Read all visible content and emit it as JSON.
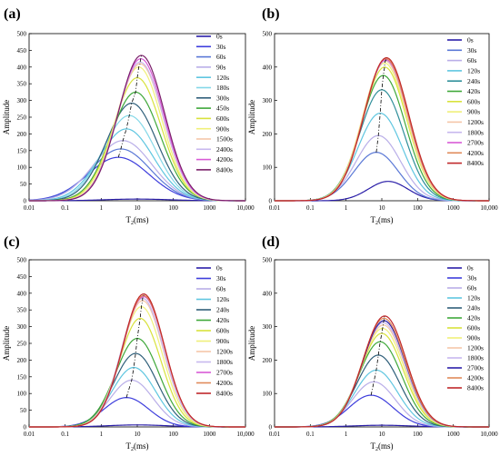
{
  "chart_data": [
    {
      "panel_label": "(a)",
      "type": "line",
      "xlabel": "T2(ms)",
      "ylabel": "Amplitude",
      "xscale": "log",
      "xlim": [
        0.01,
        10000
      ],
      "ylim": [
        0,
        500
      ],
      "x_ticks": [
        "0.01",
        "0.1",
        "1",
        "10",
        "100",
        "1000",
        "10,000"
      ],
      "y_ticks": [
        "0",
        "50",
        "100",
        "150",
        "200",
        "250",
        "300",
        "350",
        "400",
        "450",
        "500"
      ],
      "legend_position": "right",
      "series": [
        {
          "name": "0s",
          "color": "#2a1ea8",
          "peak_x": 10,
          "peak_y": 5,
          "width": 0.9
        },
        {
          "name": "30s",
          "color": "#3d3ddc",
          "peak_x": 3,
          "peak_y": 130,
          "width": 0.85
        },
        {
          "name": "60s",
          "color": "#5a78d6",
          "peak_x": 3.5,
          "peak_y": 155,
          "width": 0.82
        },
        {
          "name": "90s",
          "color": "#b9aee8",
          "peak_x": 4,
          "peak_y": 180,
          "width": 0.8
        },
        {
          "name": "120s",
          "color": "#5fc6e0",
          "peak_x": 5,
          "peak_y": 215,
          "width": 0.75
        },
        {
          "name": "180s",
          "color": "#84d8e8",
          "peak_x": 6,
          "peak_y": 255,
          "width": 0.72
        },
        {
          "name": "300s",
          "color": "#2f5f7a",
          "peak_x": 7,
          "peak_y": 292,
          "width": 0.7
        },
        {
          "name": "450s",
          "color": "#3fa83a",
          "peak_x": 9,
          "peak_y": 325,
          "width": 0.68
        },
        {
          "name": "600s",
          "color": "#d8e23c",
          "peak_x": 10,
          "peak_y": 368,
          "width": 0.66
        },
        {
          "name": "900s",
          "color": "#f0f07a",
          "peak_x": 11,
          "peak_y": 400,
          "width": 0.64
        },
        {
          "name": "1500s",
          "color": "#f5c6a8",
          "peak_x": 12,
          "peak_y": 410,
          "width": 0.64
        },
        {
          "name": "2400s",
          "color": "#c7b7ee",
          "peak_x": 12,
          "peak_y": 415,
          "width": 0.64
        },
        {
          "name": "4200s",
          "color": "#d85ad6",
          "peak_x": 12.5,
          "peak_y": 425,
          "width": 0.64
        },
        {
          "name": "8400s",
          "color": "#7a1f6a",
          "peak_x": 13,
          "peak_y": 435,
          "width": 0.64
        }
      ]
    },
    {
      "panel_label": "(b)",
      "type": "line",
      "xlabel": "T2(ms)",
      "ylabel": "Amplitude",
      "xscale": "log",
      "xlim": [
        0.01,
        10000
      ],
      "ylim": [
        0,
        500
      ],
      "x_ticks": [
        "0.01",
        "0.1",
        "1",
        "10",
        "100",
        "1000",
        "10,000"
      ],
      "y_ticks": [
        "0",
        "100",
        "200",
        "300",
        "400",
        "500"
      ],
      "legend_position": "right",
      "series": [
        {
          "name": "0s",
          "color": "#2a1ea8",
          "peak_x": 15,
          "peak_y": 58,
          "width": 0.55
        },
        {
          "name": "30s",
          "color": "#5a78d6",
          "peak_x": 7,
          "peak_y": 145,
          "width": 0.62
        },
        {
          "name": "60s",
          "color": "#b9aee8",
          "peak_x": 8,
          "peak_y": 195,
          "width": 0.62
        },
        {
          "name": "120s",
          "color": "#5fc6e0",
          "peak_x": 9,
          "peak_y": 262,
          "width": 0.62
        },
        {
          "name": "240s",
          "color": "#2f8f9a",
          "peak_x": 10,
          "peak_y": 332,
          "width": 0.62
        },
        {
          "name": "420s",
          "color": "#3fa83a",
          "peak_x": 11,
          "peak_y": 375,
          "width": 0.62
        },
        {
          "name": "600s",
          "color": "#d8e23c",
          "peak_x": 12,
          "peak_y": 400,
          "width": 0.62
        },
        {
          "name": "900s",
          "color": "#f0f07a",
          "peak_x": 12,
          "peak_y": 412,
          "width": 0.62
        },
        {
          "name": "1200s",
          "color": "#f5c6a8",
          "peak_x": 12.5,
          "peak_y": 418,
          "width": 0.62
        },
        {
          "name": "1800s",
          "color": "#c7b7ee",
          "peak_x": 13,
          "peak_y": 420,
          "width": 0.62
        },
        {
          "name": "2700s",
          "color": "#d85ad6",
          "peak_x": 13,
          "peak_y": 422,
          "width": 0.62
        },
        {
          "name": "4200s",
          "color": "#e08a5a",
          "peak_x": 13,
          "peak_y": 425,
          "width": 0.62
        },
        {
          "name": "8400s",
          "color": "#c0282a",
          "peak_x": 13.5,
          "peak_y": 428,
          "width": 0.62
        }
      ]
    },
    {
      "panel_label": "(c)",
      "type": "line",
      "xlabel": "T2(ms)",
      "ylabel": "Amplitude",
      "xscale": "log",
      "xlim": [
        0.01,
        10000
      ],
      "ylim": [
        0,
        500
      ],
      "x_ticks": [
        "0.01",
        "0.1",
        "1",
        "10",
        "100",
        "1000",
        "10,000"
      ],
      "y_ticks": [
        "0",
        "50",
        "100",
        "150",
        "200",
        "250",
        "300",
        "350",
        "400",
        "450",
        "500"
      ],
      "legend_position": "right",
      "series": [
        {
          "name": "0s",
          "color": "#2a1ea8",
          "peak_x": 10,
          "peak_y": 6,
          "width": 0.8
        },
        {
          "name": "30s",
          "color": "#3d3ddc",
          "peak_x": 5,
          "peak_y": 88,
          "width": 0.62
        },
        {
          "name": "60s",
          "color": "#b9aee8",
          "peak_x": 7,
          "peak_y": 140,
          "width": 0.6
        },
        {
          "name": "120s",
          "color": "#5fc6e0",
          "peak_x": 8,
          "peak_y": 178,
          "width": 0.6
        },
        {
          "name": "240s",
          "color": "#2f5f7a",
          "peak_x": 9,
          "peak_y": 220,
          "width": 0.6
        },
        {
          "name": "420s",
          "color": "#3fa83a",
          "peak_x": 10,
          "peak_y": 265,
          "width": 0.6
        },
        {
          "name": "600s",
          "color": "#d8e23c",
          "peak_x": 12,
          "peak_y": 325,
          "width": 0.58
        },
        {
          "name": "900s",
          "color": "#f0f07a",
          "peak_x": 13,
          "peak_y": 360,
          "width": 0.58
        },
        {
          "name": "1200s",
          "color": "#f5c6a8",
          "peak_x": 14,
          "peak_y": 378,
          "width": 0.58
        },
        {
          "name": "1800s",
          "color": "#c7b7ee",
          "peak_x": 14,
          "peak_y": 385,
          "width": 0.58
        },
        {
          "name": "2700s",
          "color": "#d85ad6",
          "peak_x": 15,
          "peak_y": 390,
          "width": 0.58
        },
        {
          "name": "4200s",
          "color": "#e08a5a",
          "peak_x": 15,
          "peak_y": 393,
          "width": 0.58
        },
        {
          "name": "8400s",
          "color": "#c0282a",
          "peak_x": 15,
          "peak_y": 398,
          "width": 0.58
        }
      ]
    },
    {
      "panel_label": "(d)",
      "type": "line",
      "xlabel": "T2(ms)",
      "ylabel": "Amplitude",
      "xscale": "log",
      "xlim": [
        0.01,
        10000
      ],
      "ylim": [
        0,
        500
      ],
      "x_ticks": [
        "0.01",
        "0.1",
        "1",
        "10",
        "100",
        "1000",
        "10,000"
      ],
      "y_ticks": [
        "0",
        "100",
        "200",
        "300",
        "400",
        "500"
      ],
      "legend_position": "right",
      "series": [
        {
          "name": "0s",
          "color": "#2a1ea8",
          "peak_x": 10,
          "peak_y": 5,
          "width": 0.8
        },
        {
          "name": "30s",
          "color": "#3d3ddc",
          "peak_x": 5,
          "peak_y": 95,
          "width": 0.62
        },
        {
          "name": "60s",
          "color": "#b9aee8",
          "peak_x": 6,
          "peak_y": 135,
          "width": 0.6
        },
        {
          "name": "120s",
          "color": "#5fc6e0",
          "peak_x": 7,
          "peak_y": 170,
          "width": 0.6
        },
        {
          "name": "240s",
          "color": "#2f5f7a",
          "peak_x": 8,
          "peak_y": 215,
          "width": 0.6
        },
        {
          "name": "420s",
          "color": "#3fa83a",
          "peak_x": 9,
          "peak_y": 255,
          "width": 0.6
        },
        {
          "name": "600s",
          "color": "#d8e23c",
          "peak_x": 10,
          "peak_y": 280,
          "width": 0.6
        },
        {
          "name": "900s",
          "color": "#f0f07a",
          "peak_x": 10.5,
          "peak_y": 295,
          "width": 0.6
        },
        {
          "name": "1200s",
          "color": "#f5c6a8",
          "peak_x": 11,
          "peak_y": 305,
          "width": 0.6
        },
        {
          "name": "1800s",
          "color": "#c7b7ee",
          "peak_x": 11,
          "peak_y": 312,
          "width": 0.6
        },
        {
          "name": "2700s",
          "color": "#2a1ea8",
          "peak_x": 11.5,
          "peak_y": 318,
          "width": 0.6
        },
        {
          "name": "4200s",
          "color": "#e08a5a",
          "peak_x": 11.5,
          "peak_y": 325,
          "width": 0.6
        },
        {
          "name": "8400s",
          "color": "#c0282a",
          "peak_x": 12,
          "peak_y": 332,
          "width": 0.6
        }
      ]
    }
  ]
}
